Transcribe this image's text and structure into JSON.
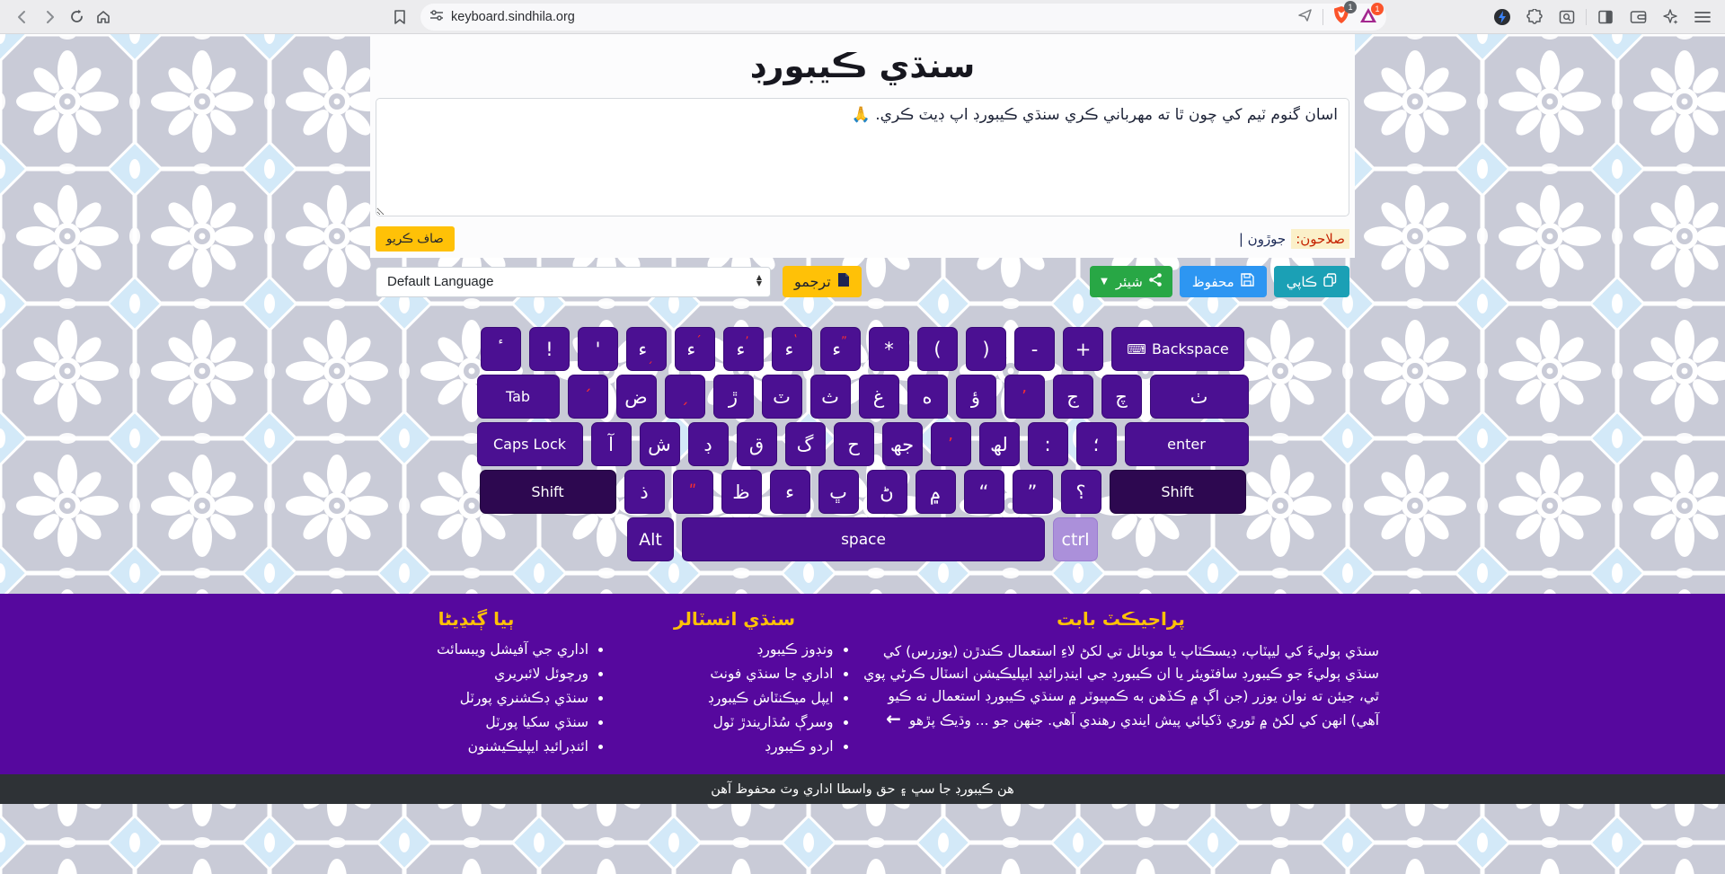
{
  "browser": {
    "url": "keyboard.sindhila.org",
    "shield_badge": "1",
    "rewards_badge": "1"
  },
  "page": {
    "title": "سنڌي ڪيبورڊ",
    "textarea_value": "اسان گنوم ٽيم کي چون ٿا ته مهرباني ڪري سنڌي ڪيبورڊ اپ ڊيٽ ڪري. 🙏",
    "clear_button": "صاف ڪريو",
    "suggestion_label": "صلاحون:",
    "suggestion_word": "جوڙون |",
    "language_select": "Default Language",
    "translate_button": "ترجمو",
    "share_button": "شيئر",
    "save_button": "محفوظ",
    "copy_button": "ڪاپي"
  },
  "keyboard": {
    "backspace_icon": "⌨",
    "rows": [
      [
        {
          "l": "ٴ"
        },
        {
          "l": "!"
        },
        {
          "l": "'"
        },
        {
          "b": "ء",
          "m": "ˏ",
          "low": 1
        },
        {
          "b": "ء",
          "m": "´"
        },
        {
          "b": "ء",
          "m": "ʼ"
        },
        {
          "b": "ء",
          "m": "ʽ"
        },
        {
          "b": "ء",
          "m": "ˮ"
        },
        {
          "l": "*"
        },
        {
          "l": "("
        },
        {
          "l": ")"
        },
        {
          "l": "-"
        },
        {
          "l": "+"
        },
        {
          "l": "Backspace",
          "cls": "latin w-bksp",
          "icon": "keyboard-icon",
          "name": "key-backspace"
        }
      ],
      [
        {
          "l": "Tab",
          "cls": "latin w-tab",
          "name": "key-tab"
        },
        {
          "l": "´",
          "red": 1
        },
        {
          "l": "ض"
        },
        {
          "l": "ˏ",
          "red": 1
        },
        {
          "l": "ڙ"
        },
        {
          "l": "ٽ"
        },
        {
          "l": "ث"
        },
        {
          "l": "غ"
        },
        {
          "l": "ه"
        },
        {
          "l": "ؤ"
        },
        {
          "l": "’",
          "red": 1
        },
        {
          "l": "ج"
        },
        {
          "l": "چ"
        },
        {
          "l": "ٺ",
          "cls": "w-last2"
        }
      ],
      [
        {
          "l": "Caps Lock",
          "cls": "latin w-caps",
          "name": "key-capslock"
        },
        {
          "l": "آ"
        },
        {
          "l": "ش"
        },
        {
          "l": "ڊ"
        },
        {
          "l": "ق"
        },
        {
          "l": "گ"
        },
        {
          "l": "ح"
        },
        {
          "l": "جھ"
        },
        {
          "l": "’",
          "red": 1
        },
        {
          "l": "لھ"
        },
        {
          "l": ":"
        },
        {
          "l": "؛"
        },
        {
          "l": "enter",
          "cls": "latin w-enter",
          "name": "key-enter"
        }
      ],
      [
        {
          "l": "Shift",
          "cls": "latin w-shift",
          "name": "key-shift-left"
        },
        {
          "l": "ذ"
        },
        {
          "l": "ʺ",
          "red": 1
        },
        {
          "l": "ظ"
        },
        {
          "l": "ء"
        },
        {
          "l": "ڀ"
        },
        {
          "l": "ڻ"
        },
        {
          "l": "۾"
        },
        {
          "l": "“"
        },
        {
          "l": "”"
        },
        {
          "l": "؟"
        },
        {
          "l": "Shift",
          "cls": "latin w-shift",
          "name": "key-shift-right"
        }
      ],
      [
        {
          "l": "Alt",
          "cls": "latin w-alt",
          "name": "key-alt"
        },
        {
          "l": "space",
          "cls": "latin w-space",
          "name": "key-space"
        },
        {
          "l": "ctrl",
          "cls": "latin w-ctrl",
          "name": "key-ctrl"
        }
      ]
    ]
  },
  "footer": {
    "links1": {
      "heading": "ٻيا ڳنڍيڻا",
      "items": [
        "اداري جي آفيشل ويبسائٽ",
        "ورچوئل لائبريري",
        "سنڌي ڊڪشنري پورٽل",
        "سنڌي سکيا پورٽل",
        "ائنڊرائيڊ ايپليڪيشنون"
      ]
    },
    "links2": {
      "heading": "سنڌي انسٽالر",
      "items": [
        "ونڊوز ڪيبورڊ",
        "اداري جا سنڌي فونٽ",
        "ايپل ميڪنٽاش ڪيبورڊ",
        "وسرڳ سُڌاريندڙ ٽول",
        "اردو ڪيبورڊ"
      ]
    },
    "about": {
      "heading": "پراجيڪٽ بابت",
      "text": "سنڌي ٻوليءَ کي ليپٽاپ، ڊيسڪٽاپ يا موبائل تي لکڻ لاءِ استعمال ڪندڙن (يوزرس) کي سنڌي ٻوليءَ جو ڪيبورڊ سافٽويئر يا ان ڪيبورڊ جي اينڊرائيڊ ايپليڪيشن انسٽال ڪرڻي پوي ٿي، جيئن ته نوان يوزر (جن اڳ ۾ ڪڏهن به ڪمپيوٽر ۾ سنڌي ڪيبورڊ استعمال نه ڪيو آهي) انهن کي لکڻ ۾ ٿوري ڏکيائي پيش ايندي رهندي آهي. جنهن جو ...",
      "more": "وڌيڪ پڙهو",
      "arrow": "←"
    }
  },
  "copyright": "هن ڪيبورڊ جا سڀ ۽ حق واسطا اداري وٽ محفوظ آهن",
  "colors": {
    "key_purple": "#4b1092",
    "shift_purple": "#2d0850",
    "ctrl_lavender": "#ab90da",
    "footer_purple": "#56089e",
    "accent_yellow": "#ffc107",
    "share_green": "#28a745",
    "save_blue": "#2d96f2",
    "copy_teal": "#1ba0b5",
    "suggestion_red": "#c52200",
    "copyright_gray": "#2e3236"
  }
}
